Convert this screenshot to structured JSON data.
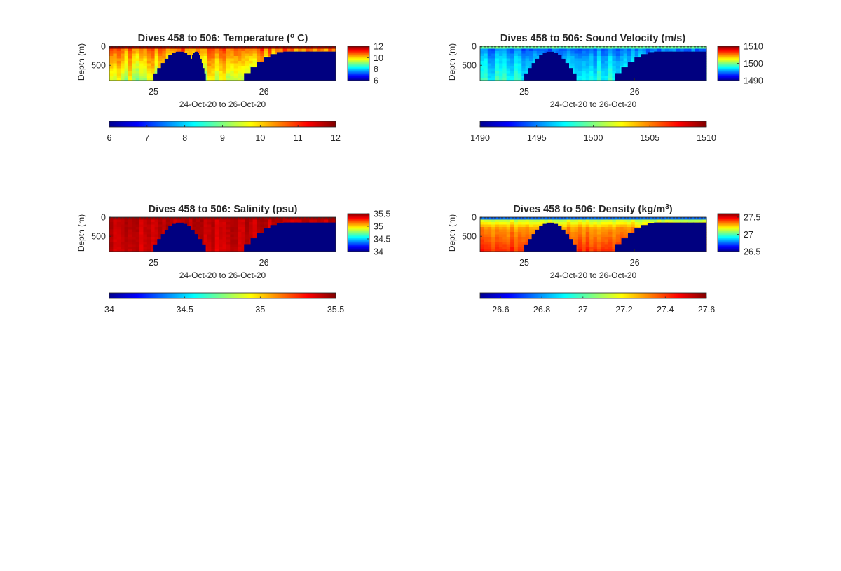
{
  "figure": {
    "background": "#ffffff",
    "panel_fill": "#000080"
  },
  "colormap": {
    "name": "jet",
    "stops": [
      "#00008f",
      "#0000ff",
      "#0080ff",
      "#00ffff",
      "#80ff80",
      "#ffff00",
      "#ff8000",
      "#ff0000",
      "#800000"
    ]
  },
  "chart_data": [
    {
      "type": "heatmap",
      "title": "Dives 458 to 506: Temperature (",
      "title_super": "o",
      "title_end": " C)",
      "xlabel": "24-Oct-20 to 26-Oct-20",
      "ylabel": "Depth (m)",
      "xlim": [
        24.6,
        26.65
      ],
      "x_ticks": [
        25,
        26
      ],
      "ylim": [
        0,
        900
      ],
      "y_reversed": true,
      "y_ticks": [
        0,
        500
      ],
      "clim": [
        6,
        12
      ],
      "colorbar_ticks": [
        6,
        8,
        10,
        12
      ],
      "horizontal_colorbar_ticks": [
        6,
        7,
        8,
        9,
        10,
        11,
        12
      ],
      "profile": {
        "surface": 12,
        "top": 10.8,
        "mid": 10.2,
        "bottom": 9.3,
        "noise": 0.45
      },
      "no_data": [
        {
          "x": [
            25.0,
            25.47
          ],
          "top": 140,
          "bottom": 900
        },
        {
          "x": [
            25.47,
            25.3
          ],
          "top": 140,
          "bottom": 900
        },
        {
          "x": [
            25.82,
            26.65
          ],
          "top": 140,
          "bottom": 900
        }
      ]
    },
    {
      "type": "heatmap",
      "title": "Dives 458 to 506: Sound Velocity (m/s)",
      "xlabel": "24-Oct-20 to 26-Oct-20",
      "ylabel": "Depth (m)",
      "xlim": [
        24.6,
        26.65
      ],
      "x_ticks": [
        25,
        26
      ],
      "ylim": [
        0,
        900
      ],
      "y_reversed": true,
      "y_ticks": [
        0,
        500
      ],
      "clim": [
        1490,
        1510
      ],
      "colorbar_ticks": [
        1490,
        1500,
        1510
      ],
      "horizontal_colorbar_ticks": [
        1490,
        1495,
        1500,
        1505,
        1510
      ],
      "profile": {
        "surface": 1499.5,
        "top": 1494,
        "mid": 1496,
        "bottom": 1498,
        "noise": 1.1
      },
      "no_data": [
        {
          "x": [
            25.0,
            25.47
          ],
          "top": 140,
          "bottom": 900
        },
        {
          "x": [
            25.82,
            26.65
          ],
          "top": 140,
          "bottom": 900
        }
      ]
    },
    {
      "type": "heatmap",
      "title": "Dives 458 to 506: Salinity (psu)",
      "xlabel": "24-Oct-20 to 26-Oct-20",
      "ylabel": "Depth (m)",
      "xlim": [
        24.6,
        26.65
      ],
      "x_ticks": [
        25,
        26
      ],
      "ylim": [
        0,
        900
      ],
      "y_reversed": true,
      "y_ticks": [
        0,
        500
      ],
      "clim": [
        34,
        35.5
      ],
      "colorbar_ticks": [
        34,
        34.5,
        35,
        35.5
      ],
      "horizontal_colorbar_ticks": [
        34,
        34.5,
        35,
        35.5
      ],
      "profile": {
        "surface": 35.45,
        "top": 35.4,
        "mid": 35.4,
        "bottom": 35.38,
        "noise": 0.05
      },
      "no_data": [
        {
          "x": [
            25.0,
            25.47
          ],
          "top": 140,
          "bottom": 900
        },
        {
          "x": [
            25.82,
            26.65
          ],
          "top": 140,
          "bottom": 900
        }
      ]
    },
    {
      "type": "heatmap",
      "title": "Dives 458 to 506: Density (kg/m",
      "title_super": "3",
      "title_end": ")",
      "xlabel": "24-Oct-20 to 26-Oct-20",
      "ylabel": "Depth (m)",
      "xlim": [
        24.6,
        26.65
      ],
      "x_ticks": [
        25,
        26
      ],
      "ylim": [
        0,
        900
      ],
      "y_reversed": true,
      "y_ticks": [
        0,
        500
      ],
      "clim": [
        26.5,
        27.6
      ],
      "colorbar_ticks": [
        26.5,
        27,
        27.5
      ],
      "horizontal_colorbar_ticks": [
        26.6,
        26.8,
        27,
        27.2,
        27.4,
        27.6
      ],
      "profile": {
        "surface": 26.75,
        "top": 27.05,
        "mid": 27.3,
        "bottom": 27.42,
        "noise": 0.04
      },
      "no_data": [
        {
          "x": [
            25.0,
            25.47
          ],
          "top": 140,
          "bottom": 900
        },
        {
          "x": [
            25.82,
            26.65
          ],
          "top": 140,
          "bottom": 900
        }
      ]
    }
  ]
}
